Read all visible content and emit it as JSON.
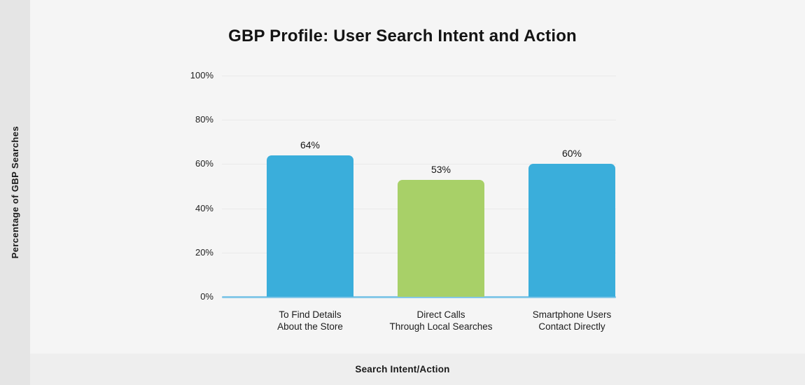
{
  "header": {
    "title": "GBP Profile: User Search Intent and Action"
  },
  "axes": {
    "x_label": "Search Intent/Action",
    "y_label": "Percentage of GBP Searches"
  },
  "chart_data": {
    "type": "bar",
    "title": "GBP Profile: User Search Intent and Action",
    "categories": [
      "To Find Details\nAbout the Store",
      "Direct Calls\nThrough Local Searches",
      "Smartphone Users\nContact Directly"
    ],
    "values": [
      64,
      53,
      60
    ],
    "value_labels": [
      "64%",
      "53%",
      "60%"
    ],
    "bar_colors": [
      "#3aaedb",
      "#a8d068",
      "#3aaedb"
    ],
    "xlabel": "Search Intent/Action",
    "ylabel": "Percentage of GBP Searches",
    "y_ticks": [
      "0%",
      "20%",
      "40%",
      "60%",
      "80%",
      "100%"
    ],
    "ylim": [
      0,
      100
    ],
    "grid": true,
    "legend": false,
    "colors": {
      "axis_line": "#85c8e8",
      "gridline": "#e9e9e9",
      "background": "#f5f5f5",
      "y_panel_background": "#e5e5e5",
      "x_panel_background": "#eeeeee",
      "text": "#1a1a1a"
    }
  }
}
